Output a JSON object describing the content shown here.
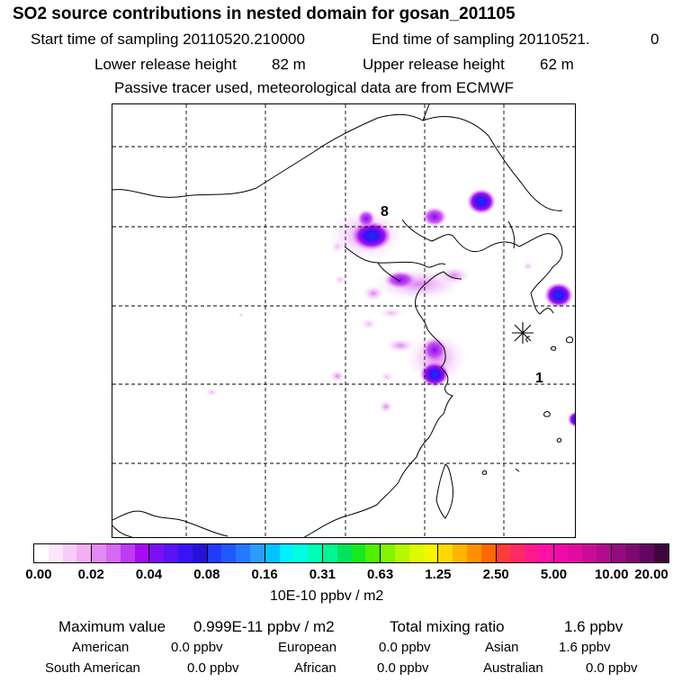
{
  "header": {
    "title": "SO2 source contributions in nested domain for gosan_201105",
    "start_label": "Start time of sampling 20110520.210000",
    "end_label": "End time of sampling 20110521.",
    "end_value": "0",
    "lower_label": "Lower release height",
    "lower_value": "82 m",
    "upper_label": "Upper release height",
    "upper_value": "62 m",
    "tracer_note": "Passive tracer used, meteorological data are from ECMWF"
  },
  "map": {
    "labels": {
      "source_a": "8",
      "source_b": "1"
    },
    "receptor_marker": "asterisk-icon"
  },
  "colorbar": {
    "unit": "10E-10 ppbv / m2",
    "ticks": [
      "0.00",
      "0.02",
      "0.04",
      "0.08",
      "0.16",
      "0.31",
      "0.63",
      "1.25",
      "2.50",
      "5.00",
      "10.00",
      "20.00"
    ],
    "colors": [
      "#ffffff",
      "#fbe6fb",
      "#f6cdf6",
      "#f0b0f3",
      "#e38bf3",
      "#d569f3",
      "#bf3cf3",
      "#a50cf3",
      "#7a10f3",
      "#5a14f5",
      "#3614f7",
      "#2612d6",
      "#1e3cff",
      "#1f58ff",
      "#2479ff",
      "#2c9cff",
      "#00c4ff",
      "#00f0ff",
      "#00ffe0",
      "#00ffb6",
      "#00f690",
      "#00e35a",
      "#18e820",
      "#53ef00",
      "#84f400",
      "#b4f800",
      "#dcfa00",
      "#f6f600",
      "#ffd800",
      "#ffb400",
      "#ff9000",
      "#ff6800",
      "#ff3c3c",
      "#ff2a64",
      "#ff198c",
      "#ff10a8",
      "#f10ba8",
      "#e00ca0",
      "#c80c98",
      "#b00c90",
      "#940a80",
      "#7c0870",
      "#620660",
      "#400440"
    ]
  },
  "stats": {
    "max_label": "Maximum value",
    "max_value": "0.999E-11 ppbv / m2",
    "total_label": "Total mixing ratio",
    "total_value": "1.6 ppbv",
    "regions": [
      {
        "name": "American",
        "value": "0.0 ppbv"
      },
      {
        "name": "European",
        "value": "0.0 ppbv"
      },
      {
        "name": "Asian",
        "value": "1.6 ppbv"
      },
      {
        "name": "South American",
        "value": "0.0 ppbv"
      },
      {
        "name": "African",
        "value": "0.0 ppbv"
      },
      {
        "name": "Australian",
        "value": "0.0 ppbv"
      }
    ]
  }
}
